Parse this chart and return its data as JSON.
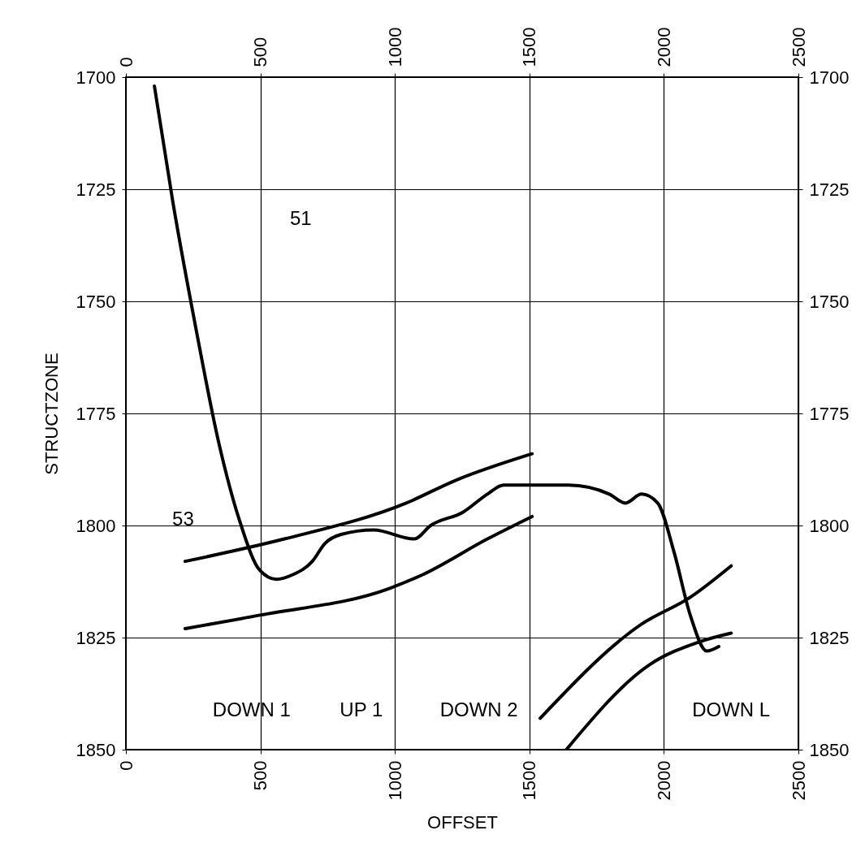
{
  "chart_data": {
    "type": "line",
    "xlabel": "OFFSET",
    "ylabel": "STRUCTZONE",
    "xlim": [
      0,
      2500
    ],
    "xticks": [
      0,
      500,
      1000,
      1500,
      2000,
      2500
    ],
    "x2lim": [
      0,
      2500
    ],
    "x2ticks": [
      0,
      500,
      1000,
      1500,
      2000,
      2500
    ],
    "ylim": [
      1850,
      1700
    ],
    "yticks": [
      1700,
      1725,
      1750,
      1775,
      1800,
      1825,
      1850
    ],
    "y2lim": [
      1850,
      1700
    ],
    "y2ticks": [
      1700,
      1725,
      1750,
      1775,
      1800,
      1825,
      1850
    ],
    "grid": true,
    "legend": false,
    "marker": "none",
    "line_style": "solid",
    "series": [
      {
        "color": "#000000",
        "x": [
          106,
          175,
          257,
          347,
          423,
          498,
          559,
          619,
          693,
          740,
          800,
          921,
          1072,
          1133,
          1254,
          1344,
          1404,
          1495,
          1646,
          1797,
          1857,
          1917,
          1977,
          2038,
          2098,
          2159,
          2204
        ],
        "values": [
          1702,
          1728,
          1755,
          1782,
          1799,
          1810,
          1812,
          1811,
          1808,
          1804,
          1802,
          1801,
          1803,
          1800,
          1797,
          1793,
          1791,
          1791,
          1791,
          1793,
          1795,
          1793,
          1795,
          1806,
          1820,
          1828,
          1827
        ]
      },
      {
        "color": "#000000",
        "x": [
          220,
          589,
          1042,
          1223,
          1510
        ],
        "values": [
          1808,
          1803,
          1795,
          1790,
          1784
        ]
      },
      {
        "color": "#000000",
        "x": [
          220,
          498,
          981,
          1102,
          1344,
          1510
        ],
        "values": [
          1823,
          1820,
          1814,
          1811,
          1803,
          1798
        ]
      },
      {
        "color": "#000000",
        "x": [
          1540,
          1917,
          2098,
          2250
        ],
        "values": [
          1843,
          1822,
          1816,
          1809
        ]
      },
      {
        "color": "#000000",
        "x": [
          1637,
          1948,
          2129,
          2250
        ],
        "values": [
          1850,
          1831,
          1826,
          1824
        ]
      }
    ],
    "annotations": [
      "51",
      "53",
      "DOWN 1",
      "UP 1",
      "DOWN 2",
      "DOWN L"
    ]
  }
}
